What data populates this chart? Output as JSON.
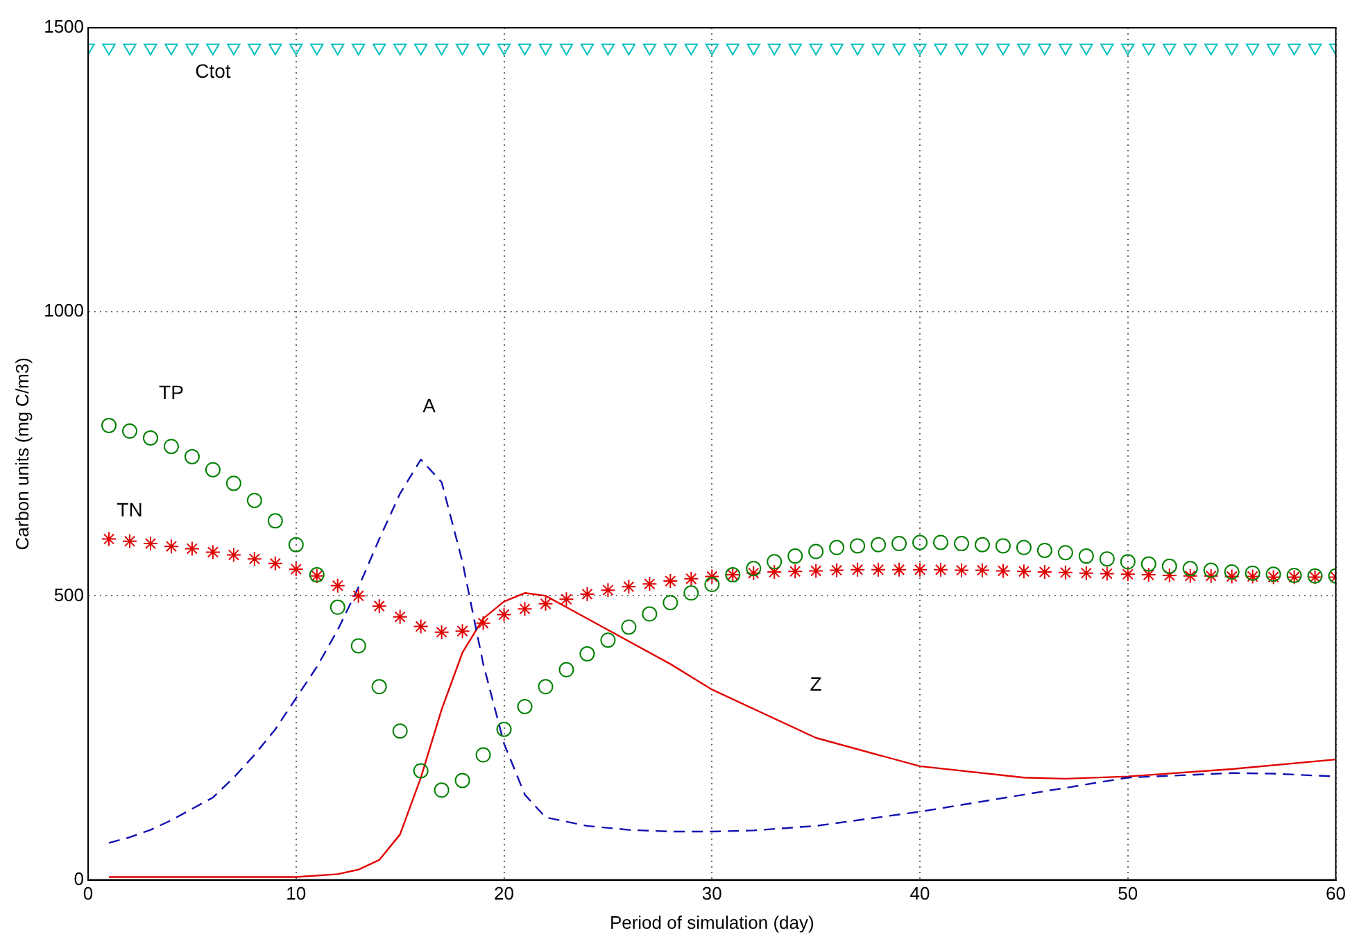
{
  "chart_data": {
    "type": "line",
    "xlabel": "Period of simulation (day)",
    "ylabel": "Carbon units (mg C/m3)",
    "xlim": [
      0,
      60
    ],
    "xticks": [
      0,
      10,
      20,
      30,
      40,
      50,
      60
    ],
    "ylim": [
      0,
      1500
    ],
    "yticks": [
      0,
      500,
      1000,
      1500
    ],
    "grid": true,
    "series": [
      {
        "name": "Ctot",
        "type": "scatter",
        "marker": "triangle",
        "color": "#00bfbf",
        "x": [
          0,
          1,
          2,
          3,
          4,
          5,
          6,
          7,
          8,
          9,
          10,
          11,
          12,
          13,
          14,
          15,
          16,
          17,
          18,
          19,
          20,
          21,
          22,
          23,
          24,
          25,
          26,
          27,
          28,
          29,
          30,
          31,
          32,
          33,
          34,
          35,
          36,
          37,
          38,
          39,
          40,
          41,
          42,
          43,
          44,
          45,
          46,
          47,
          48,
          49,
          50,
          51,
          52,
          53,
          54,
          55,
          56,
          57,
          58,
          59,
          60
        ],
        "values": [
          1465,
          1465,
          1465,
          1465,
          1465,
          1465,
          1465,
          1465,
          1465,
          1465,
          1465,
          1465,
          1465,
          1465,
          1465,
          1465,
          1465,
          1465,
          1465,
          1465,
          1465,
          1465,
          1465,
          1465,
          1465,
          1465,
          1465,
          1465,
          1465,
          1465,
          1465,
          1465,
          1465,
          1465,
          1465,
          1465,
          1465,
          1465,
          1465,
          1465,
          1465,
          1465,
          1465,
          1465,
          1465,
          1465,
          1465,
          1465,
          1465,
          1465,
          1465,
          1465,
          1465,
          1465,
          1465,
          1465,
          1465,
          1465,
          1465,
          1465,
          1465
        ]
      },
      {
        "name": "TP",
        "type": "scatter",
        "marker": "circle",
        "color": "#008000",
        "x": [
          1,
          2,
          3,
          4,
          5,
          6,
          7,
          8,
          9,
          10,
          11,
          12,
          13,
          14,
          15,
          16,
          17,
          18,
          19,
          20,
          21,
          22,
          23,
          24,
          25,
          26,
          27,
          28,
          29,
          30,
          31,
          32,
          33,
          34,
          35,
          36,
          37,
          38,
          39,
          40,
          41,
          42,
          43,
          44,
          45,
          46,
          47,
          48,
          49,
          50,
          51,
          52,
          53,
          54,
          55,
          56,
          57,
          58,
          59,
          60
        ],
        "values": [
          800,
          790,
          778,
          763,
          745,
          722,
          698,
          668,
          632,
          590,
          537,
          480,
          412,
          340,
          262,
          192,
          158,
          175,
          220,
          265,
          305,
          340,
          370,
          398,
          422,
          445,
          468,
          488,
          505,
          520,
          537,
          548,
          560,
          570,
          578,
          585,
          588,
          590,
          592,
          594,
          594,
          592,
          590,
          588,
          585,
          580,
          576,
          570,
          565,
          560,
          556,
          552,
          548,
          545,
          542,
          540,
          538,
          536,
          535,
          535
        ]
      },
      {
        "name": "TN",
        "type": "scatter",
        "marker": "cross",
        "color": "#e00000",
        "x": [
          1,
          2,
          3,
          4,
          5,
          6,
          7,
          8,
          9,
          10,
          11,
          12,
          13,
          14,
          15,
          16,
          17,
          18,
          19,
          20,
          21,
          22,
          23,
          24,
          25,
          26,
          27,
          28,
          29,
          30,
          31,
          32,
          33,
          34,
          35,
          36,
          37,
          38,
          39,
          40,
          41,
          42,
          43,
          44,
          45,
          46,
          47,
          48,
          49,
          50,
          51,
          52,
          53,
          54,
          55,
          56,
          57,
          58,
          59,
          60
        ],
        "values": [
          600,
          596,
          592,
          587,
          583,
          577,
          572,
          565,
          557,
          547,
          535,
          518,
          500,
          482,
          463,
          446,
          436,
          438,
          452,
          467,
          477,
          486,
          494,
          503,
          510,
          516,
          521,
          526,
          530,
          534,
          537,
          540,
          542,
          543,
          544,
          545,
          546,
          546,
          546,
          546,
          546,
          545,
          545,
          544,
          543,
          542,
          541,
          540,
          539,
          538,
          537,
          536,
          535,
          535,
          534,
          534,
          533,
          533,
          533,
          533
        ]
      },
      {
        "name": "A",
        "marker": "none",
        "line_style": "dashed",
        "color": "#1010b0",
        "x": [
          1,
          2,
          3,
          4,
          5,
          6,
          7,
          8,
          9,
          10,
          11,
          12,
          13,
          14,
          15,
          16,
          17,
          18,
          19,
          20,
          21,
          22,
          24,
          26,
          28,
          30,
          32,
          35,
          38,
          40,
          45,
          50,
          55,
          57,
          60
        ],
        "values": [
          65,
          75,
          88,
          105,
          125,
          145,
          180,
          220,
          265,
          320,
          375,
          440,
          515,
          600,
          680,
          740,
          700,
          560,
          380,
          240,
          150,
          110,
          95,
          88,
          85,
          85,
          87,
          95,
          110,
          120,
          150,
          180,
          188,
          187,
          182
        ]
      },
      {
        "name": "Z",
        "marker": "none",
        "line_style": "solid",
        "color": "#e00000",
        "x": [
          1,
          5,
          10,
          12,
          13,
          14,
          15,
          16,
          17,
          18,
          19,
          20,
          21,
          22,
          23,
          25,
          28,
          30,
          35,
          40,
          45,
          47,
          50,
          55,
          60
        ],
        "values": [
          5,
          5,
          5,
          10,
          18,
          35,
          80,
          180,
          300,
          400,
          460,
          490,
          505,
          500,
          480,
          440,
          380,
          335,
          250,
          200,
          180,
          178,
          182,
          195,
          212
        ]
      }
    ]
  }
}
